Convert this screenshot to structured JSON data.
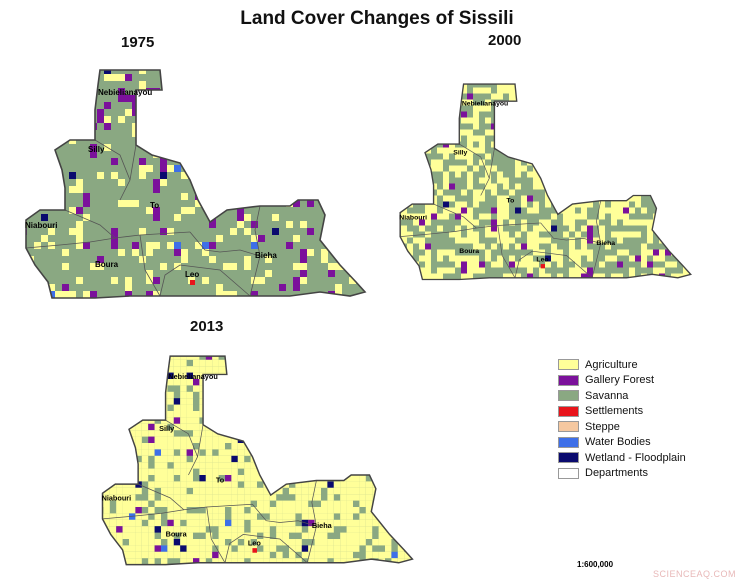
{
  "title": "Land Cover Changes of Sissili",
  "maps": [
    {
      "year": "1975",
      "agri_density": 0.16,
      "forest_density": 0.09,
      "labels": {
        "nebielianayou": "Nebielianayou",
        "silly": "Silly",
        "to": "To",
        "niabouri": "Niabouri",
        "boura": "Boura",
        "leo": "Leo",
        "bieha": "Bieha"
      }
    },
    {
      "year": "2000",
      "agri_density": 0.45,
      "forest_density": 0.07,
      "labels": {
        "nebielianayou": "Nebielianayou",
        "silly": "Silly",
        "to": "To",
        "niabouri": "Niabouri",
        "boura": "Boura",
        "leo": "Leo",
        "bieha": "Bieha"
      }
    },
    {
      "year": "2013",
      "agri_density": 0.78,
      "forest_density": 0.04,
      "labels": {
        "nebielianayou": "Nebielianayou",
        "silly": "Silly",
        "to": "To",
        "niabouri": "Niabouri",
        "boura": "Boura",
        "leo": "Leo",
        "bieha": "Bieha"
      }
    }
  ],
  "legend": [
    {
      "label": "Agriculture",
      "color": "#ffff99"
    },
    {
      "label": "Gallery Forest",
      "color": "#7b119b"
    },
    {
      "label": "Savanna",
      "color": "#8aa882"
    },
    {
      "label": "Settlements",
      "color": "#e8141b"
    },
    {
      "label": "Steppe",
      "color": "#f5c8a0"
    },
    {
      "label": "Water Bodies",
      "color": "#3e6fe8"
    },
    {
      "label": "Wetland - Floodplain",
      "color": "#0a0a6e"
    },
    {
      "label": "Departments",
      "color": "#ffffff"
    }
  ],
  "scale": "1:600,000",
  "watermark": "SCIENCEAQ.COM"
}
